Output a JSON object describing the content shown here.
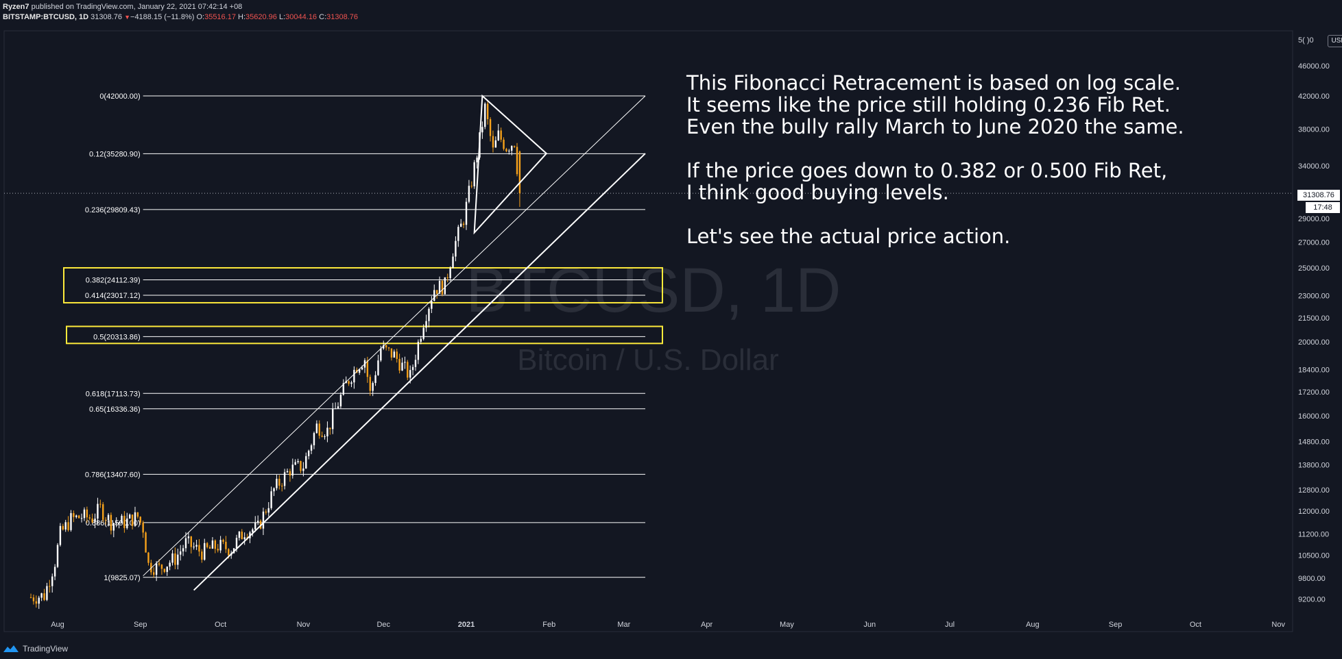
{
  "header": {
    "author": "Ryzen7",
    "published": " published on TradingView.com, January 22, 2021 07:42:14 +08",
    "symbol": "BITSTAMP:BTCUSD, 1D",
    "last": "31308.76",
    "change_arrow": "▼",
    "change": "−4188.15 (−11.8%)",
    "o_label": "O:",
    "o_value": "35516.17",
    "h_label": "H:",
    "h_value": "35620.96",
    "l_label": "L:",
    "l_value": "30044.16",
    "c_label": "C:",
    "c_value": "31308.76"
  },
  "watermark": {
    "symbol": "BTCUSD, 1D",
    "description": "Bitcoin / U.S. Dollar"
  },
  "annotation": {
    "lines": [
      "This Fibonacci Retracement is based on log scale.",
      "It seems like the price still holding 0.236 Fib Ret.",
      "Even the bully rally March to June 2020 the same.",
      "",
      "If the price goes down to 0.382 or 0.500 Fib Ret,",
      "I think good buying levels.",
      "",
      "Let's see the actual price action."
    ]
  },
  "price_axis": {
    "currency_button": "USD",
    "last_price": "31308.76",
    "countdown": "17:48",
    "top_label_partial": "5( )0"
  },
  "footer": {
    "brand": "TradingView",
    "logo_icon": "tradingview-logo-icon"
  },
  "colors": {
    "background": "#131722",
    "fib_line": "#ffffff",
    "highlight_box": "#ffeb3b",
    "candle_up": "#ffffff",
    "candle_down": "#f7a21b",
    "watermark": "#2a2e39"
  },
  "chart_data": {
    "type": "candlestick",
    "symbol": "BITSTAMP:BTCUSD",
    "interval": "1D",
    "y_scale": "log",
    "ylim": [
      8900,
      51000
    ],
    "y_ticks": [
      9200,
      9800,
      10500,
      11200,
      12000,
      12800,
      13800,
      14800,
      16000,
      17200,
      18400,
      20000,
      21500,
      23000,
      25000,
      27000,
      29000,
      31308.76,
      34000,
      38000,
      42000,
      46000
    ],
    "y_tick_labels": [
      "9200.00",
      "9800.00",
      "10500.00",
      "11200.00",
      "12000.00",
      "12800.00",
      "13800.00",
      "14800.00",
      "16000.00",
      "17200.00",
      "18400.00",
      "20000.00",
      "21500.00",
      "23000.00",
      "25000.00",
      "27000.00",
      "29000.00",
      "",
      "34000.00",
      "38000.00",
      "42000.00",
      "46000.00"
    ],
    "x_ticks": [
      "Aug",
      "Sep",
      "Oct",
      "Nov",
      "Dec",
      "2021",
      "Feb",
      "Mar",
      "Apr",
      "May",
      "Jun",
      "Jul",
      "Aug",
      "Sep",
      "Oct",
      "Nov"
    ],
    "x_tick_dates": [
      "2020-08-01",
      "2020-09-01",
      "2020-10-01",
      "2020-11-01",
      "2020-12-01",
      "2021-01-01",
      "2021-02-01",
      "2021-03-01",
      "2021-04-01",
      "2021-05-01",
      "2021-06-01",
      "2021-07-01",
      "2021-08-01",
      "2021-09-01",
      "2021-10-01",
      "2021-11-01"
    ],
    "x_range": [
      "2020-07-22",
      "2021-11-07"
    ],
    "price_series": [
      [
        "2020-07-22",
        9250
      ],
      [
        "2020-07-27",
        9300
      ],
      [
        "2020-07-31",
        10300
      ],
      [
        "2020-08-02",
        11200
      ],
      [
        "2020-08-06",
        11700
      ],
      [
        "2020-08-10",
        11800
      ],
      [
        "2020-08-14",
        11750
      ],
      [
        "2020-08-17",
        12100
      ],
      [
        "2020-08-21",
        11600
      ],
      [
        "2020-08-26",
        11600
      ],
      [
        "2020-08-31",
        11800
      ],
      [
        "2020-09-02",
        11400
      ],
      [
        "2020-09-04",
        10200
      ],
      [
        "2020-09-08",
        10100
      ],
      [
        "2020-09-14",
        10400
      ],
      [
        "2020-09-18",
        10900
      ],
      [
        "2020-09-24",
        10600
      ],
      [
        "2020-09-30",
        10800
      ],
      [
        "2020-10-05",
        10700
      ],
      [
        "2020-10-10",
        11300
      ],
      [
        "2020-10-15",
        11400
      ],
      [
        "2020-10-21",
        12800
      ],
      [
        "2020-10-27",
        13600
      ],
      [
        "2020-11-01",
        13750
      ],
      [
        "2020-11-06",
        15500
      ],
      [
        "2020-11-10",
        15300
      ],
      [
        "2020-11-13",
        16300
      ],
      [
        "2020-11-17",
        17600
      ],
      [
        "2020-11-21",
        18600
      ],
      [
        "2020-11-24",
        19000
      ],
      [
        "2020-11-26",
        17100
      ],
      [
        "2020-11-30",
        19600
      ],
      [
        "2020-12-05",
        19200
      ],
      [
        "2020-12-11",
        18000
      ],
      [
        "2020-12-16",
        21300
      ],
      [
        "2020-12-20",
        23500
      ],
      [
        "2020-12-24",
        23700
      ],
      [
        "2020-12-27",
        26400
      ],
      [
        "2020-12-31",
        29000
      ],
      [
        "2021-01-03",
        32500
      ],
      [
        "2021-01-06",
        36800
      ],
      [
        "2021-01-08",
        40500
      ],
      [
        "2021-01-11",
        35500
      ],
      [
        "2021-01-13",
        37300
      ],
      [
        "2021-01-16",
        36000
      ],
      [
        "2021-01-19",
        36600
      ],
      [
        "2021-01-21",
        31308.76
      ]
    ],
    "fibonacci_retracement": [
      {
        "level": 0,
        "price": 42000.0,
        "label": "0(42000.00)"
      },
      {
        "level": 0.12,
        "price": 35280.9,
        "label": "0.12(35280.90)"
      },
      {
        "level": 0.236,
        "price": 29809.43,
        "label": "0.236(29809.43)"
      },
      {
        "level": 0.382,
        "price": 24112.39,
        "label": "0.382(24112.39)"
      },
      {
        "level": 0.414,
        "price": 23017.12,
        "label": "0.414(23017.12)"
      },
      {
        "level": 0.5,
        "price": 20313.86,
        "label": "0.5(20313.86)"
      },
      {
        "level": 0.618,
        "price": 17113.73,
        "label": "0.618(17113.73)"
      },
      {
        "level": 0.65,
        "price": 16336.36,
        "label": "0.65(16336.36)"
      },
      {
        "level": 0.786,
        "price": 13407.6,
        "label": "0.786(13407.60)"
      },
      {
        "level": 0.886,
        "price": 11590.0,
        "label": "0.886(11590.00)"
      },
      {
        "level": 1,
        "price": 9825.07,
        "label": "1(9825.07)"
      }
    ],
    "highlight_boxes": [
      {
        "from_price": 22500,
        "to_price": 25000,
        "covers": [
          "0.382",
          "0.414"
        ]
      },
      {
        "from_price": 19900,
        "to_price": 20950,
        "covers": [
          "0.5"
        ]
      }
    ],
    "trendlines": [
      {
        "from": [
          "2020-09-02",
          9870
        ],
        "to": [
          "2021-03-09",
          42000
        ]
      },
      {
        "from": [
          "2020-09-21",
          9450
        ],
        "to": [
          "2021-03-09",
          35300
        ]
      }
    ],
    "triangle": [
      [
        "2021-01-07",
        42000
      ],
      [
        "2021-01-31",
        35300
      ],
      [
        "2021-01-04",
        27800
      ]
    ]
  }
}
